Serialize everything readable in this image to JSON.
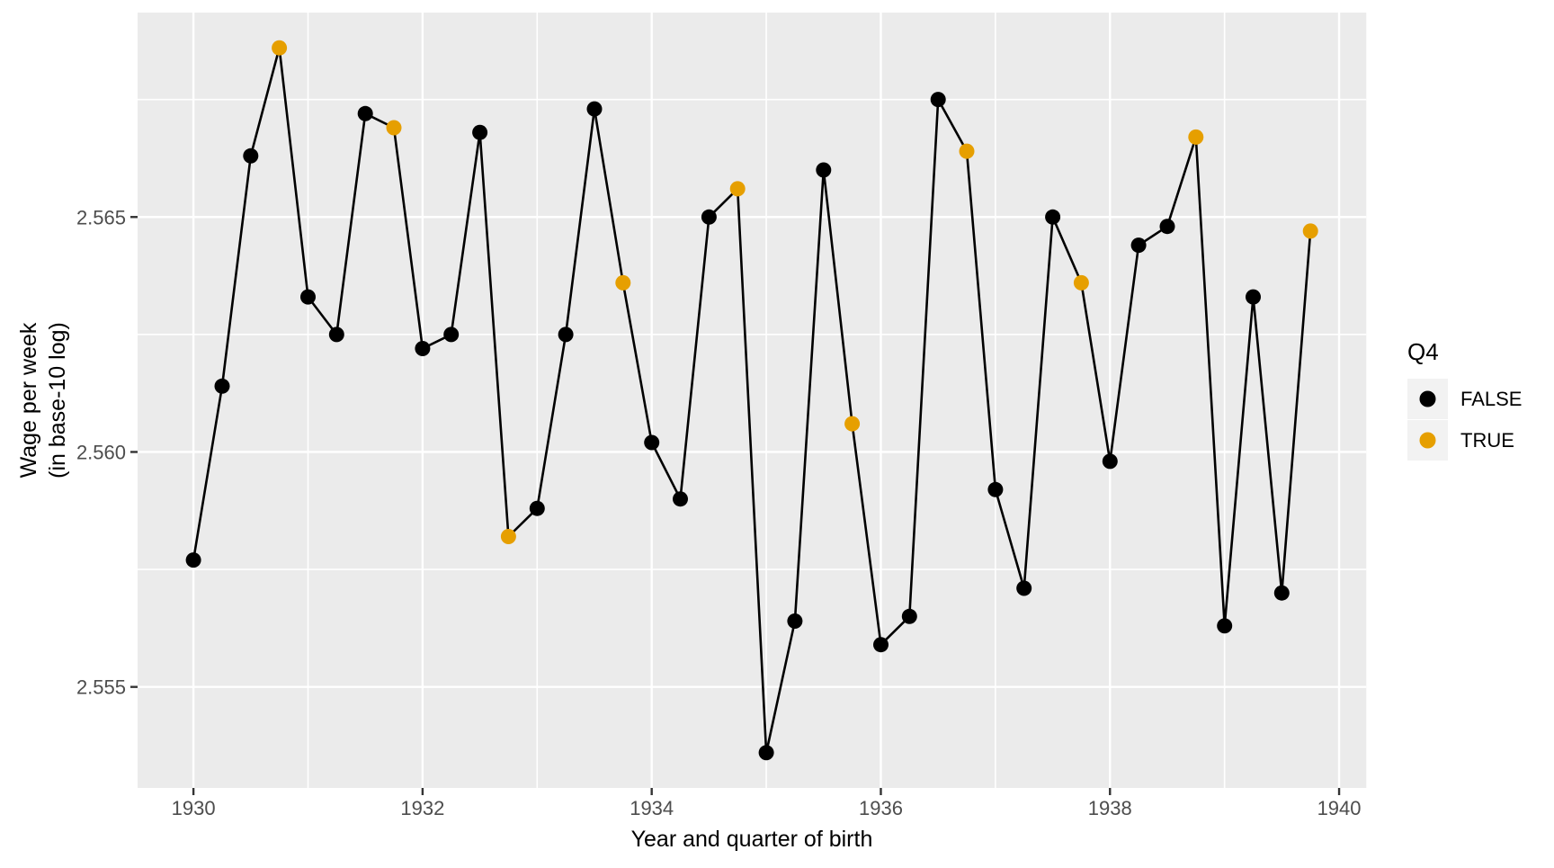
{
  "chart_data": {
    "type": "line",
    "title": "",
    "xlabel": "Year and quarter of birth",
    "ylabel": "Wage per week (in base-10 log)",
    "ylabel_lines": [
      "Wage per week",
      "(in base-10 log)"
    ],
    "x": [
      1930.0,
      1930.25,
      1930.5,
      1930.75,
      1931.0,
      1931.25,
      1931.5,
      1931.75,
      1932.0,
      1932.25,
      1932.5,
      1932.75,
      1933.0,
      1933.25,
      1933.5,
      1933.75,
      1934.0,
      1934.25,
      1934.5,
      1934.75,
      1935.0,
      1935.25,
      1935.5,
      1935.75,
      1936.0,
      1936.25,
      1936.5,
      1936.75,
      1937.0,
      1937.25,
      1937.5,
      1937.75,
      1938.0,
      1938.25,
      1938.5,
      1938.75,
      1939.0,
      1939.25,
      1939.5,
      1939.75
    ],
    "y": [
      2.5577,
      2.5614,
      2.5663,
      2.5686,
      2.5633,
      2.5625,
      2.5672,
      2.5669,
      2.5622,
      2.5625,
      2.5668,
      2.5582,
      2.5588,
      2.5625,
      2.5673,
      2.5636,
      2.5602,
      2.559,
      2.565,
      2.5656,
      2.5536,
      2.5564,
      2.566,
      2.5606,
      2.5559,
      2.5565,
      2.5675,
      2.5664,
      2.5592,
      2.5571,
      2.565,
      2.5636,
      2.5598,
      2.5644,
      2.5648,
      2.5667,
      2.5563,
      2.5633,
      2.557,
      2.5647
    ],
    "q4": [
      false,
      false,
      false,
      true,
      false,
      false,
      false,
      true,
      false,
      false,
      false,
      true,
      false,
      false,
      false,
      true,
      false,
      false,
      false,
      true,
      false,
      false,
      false,
      true,
      false,
      false,
      false,
      true,
      false,
      false,
      false,
      true,
      false,
      false,
      false,
      true,
      false,
      false,
      false,
      true
    ],
    "xlim": [
      1929.5125,
      1940.2375
    ],
    "ylim": [
      2.55285,
      2.56935
    ],
    "x_major_ticks": [
      1930,
      1932,
      1934,
      1936,
      1938,
      1940
    ],
    "x_tick_labels": [
      "1930",
      "1932",
      "1934",
      "1936",
      "1938",
      "1940"
    ],
    "x_minor_ticks": [
      1931,
      1933,
      1935,
      1937,
      1939
    ],
    "y_major_ticks": [
      2.555,
      2.56,
      2.565
    ],
    "y_tick_labels": [
      "2.555",
      "2.560",
      "2.565"
    ],
    "y_minor_ticks": [
      2.5575,
      2.5625,
      2.5675
    ],
    "grid": true,
    "legend": {
      "position": "right",
      "title": "Q4",
      "entries": [
        {
          "label": "FALSE",
          "color": "#000000"
        },
        {
          "label": "TRUE",
          "color": "#E69F00"
        }
      ]
    },
    "colors": {
      "point_false": "#000000",
      "point_true": "#E69F00",
      "line": "#000000",
      "panel_bg": "#EBEBEB",
      "grid": "#FFFFFF",
      "axis_text": "#4D4D4D",
      "tick_mark": "#333333",
      "legend_key_bg": "#F2F2F2"
    }
  }
}
